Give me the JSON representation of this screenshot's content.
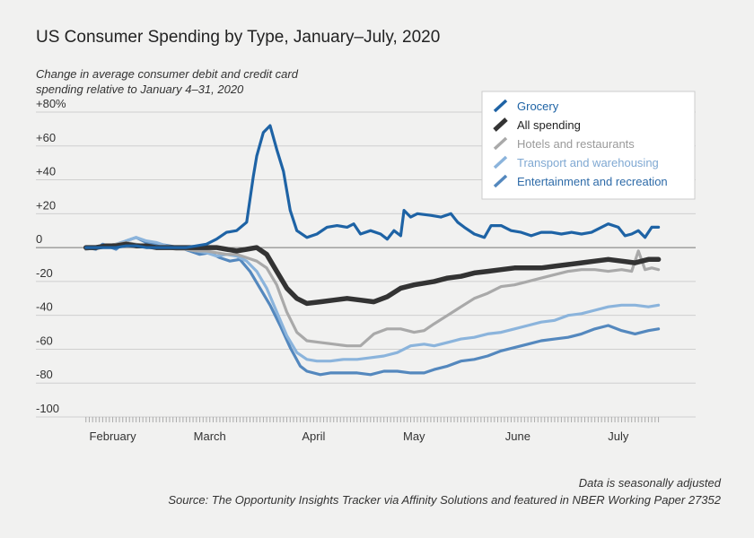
{
  "title": "US Consumer Spending by Type, January–July, 2020",
  "subtitle": "Change in average consumer debit and credit card spending relative to January 4–31, 2020",
  "footnote": {
    "line1": "Data is seasonally adjusted",
    "line2": "Source: The Opportunity Insights Tracker via Affinity Solutions and featured in NBER Working Paper 27352"
  },
  "chart_data": {
    "type": "line",
    "title": "US Consumer Spending by Type, January–July, 2020",
    "ylabel": "Change in average consumer debit and credit card spending relative to January 4–31, 2020",
    "x_unit": "day index from January 13, 2020",
    "xlim": [
      -1,
      173
    ],
    "ylim": [
      -100,
      80
    ],
    "yticks": [
      80,
      60,
      40,
      20,
      0,
      -20,
      -40,
      -60,
      -80,
      -100
    ],
    "ytick_labels": [
      "+80%",
      "+60",
      "+40",
      "+20",
      "0",
      "-20",
      "-40",
      "-60",
      "-80",
      "-100"
    ],
    "month_labels": [
      {
        "label": "February",
        "x": 8
      },
      {
        "label": "March",
        "x": 37
      },
      {
        "label": "April",
        "x": 68
      },
      {
        "label": "May",
        "x": 98
      },
      {
        "label": "June",
        "x": 129
      },
      {
        "label": "July",
        "x": 159
      }
    ],
    "gridlines": true,
    "legend_position": "top-right",
    "series": [
      {
        "name": "Entertainment and recreation",
        "color": "#5488be",
        "x": [
          0,
          3,
          5,
          9,
          12,
          15,
          18,
          22,
          25,
          28,
          31,
          34,
          37,
          40,
          43,
          46,
          49,
          52,
          55,
          58,
          61,
          64,
          66,
          70,
          73,
          77,
          81,
          85,
          89,
          93,
          97,
          101,
          104,
          108,
          112,
          116,
          120,
          124,
          128,
          132,
          136,
          140,
          144,
          148,
          152,
          156,
          160,
          164,
          168,
          171
        ],
        "values": [
          0,
          -1,
          2,
          -1,
          4,
          6,
          3,
          2,
          1,
          0,
          -2,
          -4,
          -3,
          -6,
          -8,
          -7,
          -14,
          -24,
          -34,
          -46,
          -59,
          -70,
          -73,
          -75,
          -74,
          -74,
          -74,
          -75,
          -73,
          -73,
          -74,
          -74,
          -72,
          -70,
          -67,
          -66,
          -64,
          -61,
          -59,
          -57,
          -55,
          -54,
          -53,
          -51,
          -48,
          -46,
          -49,
          -51,
          -49,
          -48
        ]
      },
      {
        "name": "Transport and warehousing",
        "color": "#8bb4dc",
        "x": [
          0,
          3,
          6,
          9,
          12,
          15,
          18,
          21,
          24,
          27,
          30,
          33,
          36,
          39,
          42,
          45,
          48,
          51,
          54,
          57,
          60,
          63,
          66,
          69,
          73,
          77,
          81,
          85,
          89,
          93,
          97,
          101,
          104,
          108,
          112,
          116,
          120,
          124,
          128,
          132,
          136,
          140,
          144,
          148,
          152,
          156,
          160,
          164,
          168,
          171
        ],
        "values": [
          -1,
          0,
          1,
          2,
          4,
          6,
          4,
          3,
          1,
          0,
          -1,
          -2,
          -3,
          -5,
          -4,
          -5,
          -8,
          -14,
          -24,
          -38,
          -52,
          -62,
          -66,
          -67,
          -67,
          -66,
          -66,
          -65,
          -64,
          -62,
          -58,
          -57,
          -58,
          -56,
          -54,
          -53,
          -51,
          -50,
          -48,
          -46,
          -44,
          -43,
          -40,
          -39,
          -37,
          -35,
          -34,
          -34,
          -35,
          -34
        ]
      },
      {
        "name": "Hotels and restaurants",
        "color": "#a9a9a9",
        "x": [
          0,
          3,
          6,
          9,
          12,
          15,
          18,
          21,
          24,
          27,
          30,
          33,
          36,
          39,
          42,
          45,
          48,
          51,
          54,
          57,
          60,
          63,
          66,
          70,
          74,
          78,
          82,
          86,
          90,
          94,
          98,
          101,
          104,
          108,
          112,
          116,
          120,
          124,
          128,
          132,
          136,
          140,
          144,
          148,
          152,
          156,
          160,
          163,
          165,
          167,
          169,
          171
        ],
        "values": [
          -1,
          0,
          1,
          2,
          3,
          2,
          1,
          0,
          0,
          -1,
          -1,
          -2,
          -2,
          -3,
          -4,
          -4,
          -6,
          -8,
          -12,
          -22,
          -38,
          -50,
          -55,
          -56,
          -57,
          -58,
          -58,
          -51,
          -48,
          -48,
          -50,
          -49,
          -45,
          -40,
          -35,
          -30,
          -27,
          -23,
          -22,
          -20,
          -18,
          -16,
          -14,
          -13,
          -13,
          -14,
          -13,
          -14,
          -2,
          -13,
          -12,
          -13
        ]
      },
      {
        "name": "All spending",
        "color": "#333333",
        "x": [
          0,
          3,
          6,
          9,
          12,
          15,
          18,
          21,
          24,
          27,
          30,
          33,
          36,
          39,
          42,
          45,
          48,
          51,
          54,
          57,
          60,
          63,
          66,
          70,
          74,
          78,
          82,
          86,
          90,
          94,
          98,
          101,
          104,
          108,
          112,
          116,
          120,
          124,
          128,
          132,
          136,
          140,
          144,
          148,
          152,
          156,
          160,
          164,
          168,
          171
        ],
        "values": [
          0,
          0,
          1,
          1,
          2,
          1,
          1,
          0,
          0,
          0,
          0,
          0,
          0,
          0,
          -1,
          -2,
          -1,
          0,
          -4,
          -14,
          -24,
          -30,
          -33,
          -32,
          -31,
          -30,
          -31,
          -32,
          -29,
          -24,
          -22,
          -21,
          -20,
          -18,
          -17,
          -15,
          -14,
          -13,
          -12,
          -12,
          -12,
          -11,
          -10,
          -9,
          -8,
          -7,
          -8,
          -9,
          -7,
          -7
        ]
      },
      {
        "name": "Grocery",
        "color": "#1e63a5",
        "x": [
          0,
          3,
          6,
          9,
          12,
          15,
          18,
          21,
          24,
          27,
          30,
          33,
          36,
          39,
          42,
          45,
          48,
          50,
          51,
          53,
          55,
          57,
          59,
          61,
          63,
          66,
          69,
          72,
          75,
          78,
          80,
          82,
          85,
          88,
          90,
          92,
          94,
          95,
          97,
          99,
          103,
          106,
          109,
          111,
          113,
          116,
          119,
          121,
          124,
          127,
          130,
          133,
          136,
          139,
          142,
          145,
          148,
          151,
          153,
          156,
          159,
          161,
          163,
          165,
          167,
          169,
          171
        ],
        "values": [
          0,
          0,
          0,
          0,
          1,
          1,
          0,
          0,
          0,
          0,
          0,
          1,
          2,
          5,
          9,
          10,
          15,
          42,
          54,
          68,
          72,
          58,
          45,
          22,
          10,
          6,
          8,
          12,
          13,
          12,
          14,
          8,
          10,
          8,
          5,
          10,
          7,
          22,
          18,
          20,
          19,
          18,
          20,
          15,
          12,
          8,
          6,
          13,
          13,
          10,
          9,
          7,
          9,
          9,
          8,
          9,
          8,
          9,
          11,
          14,
          12,
          7,
          8,
          10,
          6,
          12,
          12
        ]
      }
    ]
  },
  "legend": [
    {
      "label": "Grocery",
      "color": "#1e63a5",
      "text_color": "#1e63a5"
    },
    {
      "label": "All spending",
      "color": "#333333",
      "text_color": "#222222"
    },
    {
      "label": "Hotels and restaurants",
      "color": "#a9a9a9",
      "text_color": "#9a9a9a"
    },
    {
      "label": "Transport and warehousing",
      "color": "#8bb4dc",
      "text_color": "#7fa8d2"
    },
    {
      "label": "Entertainment and recreation",
      "color": "#5488be",
      "text_color": "#2e6ba8"
    }
  ]
}
